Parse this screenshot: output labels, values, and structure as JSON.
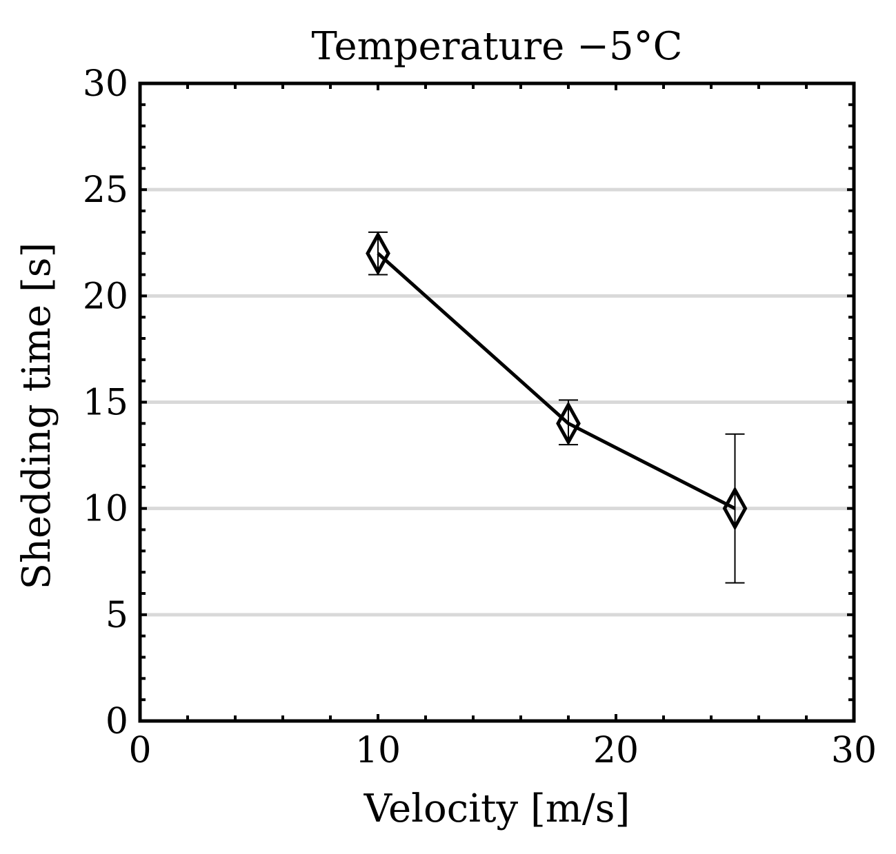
{
  "chart_data": {
    "type": "line",
    "title": "Temperature −5°C",
    "xlabel": "Velocity [m/s]",
    "ylabel": "Shedding time [s]",
    "xlim": [
      0,
      30
    ],
    "ylim": [
      0,
      30
    ],
    "xticks": [
      0,
      10,
      20,
      30
    ],
    "yticks": [
      0,
      5,
      10,
      15,
      20,
      25,
      30
    ],
    "xtick_labels": [
      "0",
      "10",
      "20",
      "30"
    ],
    "ytick_labels": [
      "0",
      "5",
      "10",
      "15",
      "20",
      "25",
      "30"
    ],
    "grid": "horizontal",
    "series": [
      {
        "name": "Temperature −5°C",
        "marker": "diamond",
        "x": [
          10,
          18,
          25
        ],
        "y": [
          22,
          14,
          10
        ],
        "error_low": [
          21,
          13,
          6.5
        ],
        "error_high": [
          23,
          15.1,
          13.5
        ]
      }
    ],
    "colors": {
      "line": "#000000",
      "grid": "#d9d9d9",
      "frame": "#000000"
    }
  }
}
